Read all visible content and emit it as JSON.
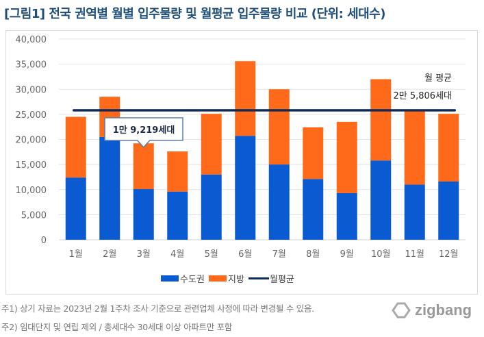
{
  "title": "[그림1] 전국 권역별 월별 입주물량 및 월평균 입주물량 비교 (단위: 세대수)",
  "notes": [
    "주1) 상기 자료는 2023년 2월 1주차 조사 기준으로 관련업체 사정에 따라 변경될 수 있음.",
    "주2) 임대단지 및 연립 제외 / 총세대수 30세대 이상 아파트만 포함"
  ],
  "logo": "zigbang",
  "chart_data": {
    "type": "bar",
    "stacked": true,
    "categories": [
      "1월",
      "2월",
      "3월",
      "4월",
      "5월",
      "6월",
      "7월",
      "8월",
      "9월",
      "10월",
      "11월",
      "12월"
    ],
    "series": [
      {
        "name": "수도권",
        "color": "#0a5bd1",
        "values": [
          12400,
          20500,
          10100,
          9600,
          13000,
          20700,
          15000,
          12100,
          9300,
          15800,
          11000,
          11600
        ]
      },
      {
        "name": "지방",
        "color": "#ff6a1a",
        "values": [
          12100,
          8000,
          9119,
          8000,
          12100,
          14900,
          15000,
          10300,
          14200,
          16200,
          14800,
          13500
        ]
      }
    ],
    "line": {
      "name": "월평균",
      "color": "#0d2a5c",
      "value": 25806
    },
    "yticks": [
      "0",
      "5,000",
      "10,000",
      "15,000",
      "20,000",
      "25,000",
      "30,000",
      "35,000",
      "40,000"
    ],
    "ylim": [
      0,
      40000
    ],
    "grid": true,
    "legend": "bottom",
    "annotations": {
      "callout": {
        "text": "1만 9,219세대",
        "category": "3월"
      },
      "avg_label_1": "월 평균",
      "avg_label_2": "2만 5,806세대"
    }
  }
}
